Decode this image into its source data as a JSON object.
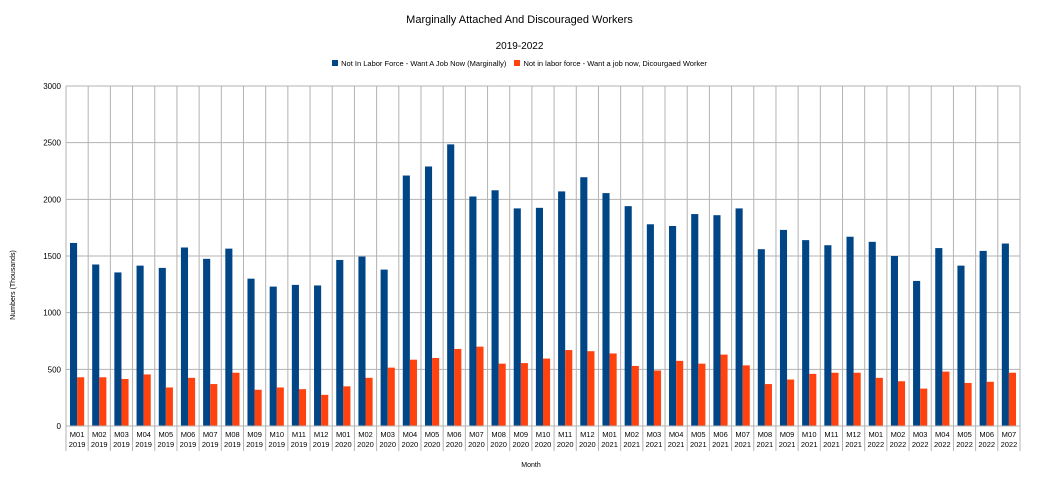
{
  "chart_data": {
    "type": "bar",
    "title": "Marginally Attached And Discouraged Workers",
    "subtitle": "2019-2022",
    "xlabel": "Month",
    "ylabel": "Numbers (Thousands)",
    "ylim": [
      0,
      3000
    ],
    "yticks": [
      0,
      500,
      1000,
      1500,
      2000,
      2500,
      3000
    ],
    "grid": true,
    "legend_position": "top",
    "categories": [
      [
        "M01",
        "2019"
      ],
      [
        "M02",
        "2019"
      ],
      [
        "M03",
        "2019"
      ],
      [
        "M04",
        "2019"
      ],
      [
        "M05",
        "2019"
      ],
      [
        "M06",
        "2019"
      ],
      [
        "M07",
        "2019"
      ],
      [
        "M08",
        "2019"
      ],
      [
        "M09",
        "2019"
      ],
      [
        "M10",
        "2019"
      ],
      [
        "M11",
        "2019"
      ],
      [
        "M12",
        "2019"
      ],
      [
        "M01",
        "2020"
      ],
      [
        "M02",
        "2020"
      ],
      [
        "M03",
        "2020"
      ],
      [
        "M04",
        "2020"
      ],
      [
        "M05",
        "2020"
      ],
      [
        "M06",
        "2020"
      ],
      [
        "M07",
        "2020"
      ],
      [
        "M08",
        "2020"
      ],
      [
        "M09",
        "2020"
      ],
      [
        "M10",
        "2020"
      ],
      [
        "M11",
        "2020"
      ],
      [
        "M12",
        "2020"
      ],
      [
        "M01",
        "2021"
      ],
      [
        "M02",
        "2021"
      ],
      [
        "M03",
        "2021"
      ],
      [
        "M04",
        "2021"
      ],
      [
        "M05",
        "2021"
      ],
      [
        "M06",
        "2021"
      ],
      [
        "M07",
        "2021"
      ],
      [
        "M08",
        "2021"
      ],
      [
        "M09",
        "2021"
      ],
      [
        "M10",
        "2021"
      ],
      [
        "M11",
        "2021"
      ],
      [
        "M12",
        "2021"
      ],
      [
        "M01",
        "2022"
      ],
      [
        "M02",
        "2022"
      ],
      [
        "M03",
        "2022"
      ],
      [
        "M04",
        "2022"
      ],
      [
        "M05",
        "2022"
      ],
      [
        "M06",
        "2022"
      ],
      [
        "M07",
        "2022"
      ]
    ],
    "series": [
      {
        "name": "Not In Labor Force - Want A Job Now (Marginally)",
        "color": "#004586",
        "values": [
          1615,
          1425,
          1355,
          1415,
          1395,
          1575,
          1475,
          1565,
          1300,
          1230,
          1245,
          1240,
          1465,
          1495,
          1380,
          2210,
          2290,
          2485,
          2025,
          2080,
          1920,
          1925,
          2070,
          2195,
          2055,
          1940,
          1780,
          1765,
          1870,
          1860,
          1920,
          1560,
          1730,
          1640,
          1595,
          1670,
          1625,
          1500,
          1280,
          1570,
          1415,
          1545,
          1610
        ]
      },
      {
        "name": "Not in labor force - Want a job now, Dicourgaed Worker",
        "color": "#ff420e",
        "values": [
          430,
          430,
          415,
          455,
          340,
          425,
          370,
          470,
          320,
          340,
          325,
          275,
          350,
          425,
          515,
          585,
          600,
          680,
          700,
          550,
          555,
          595,
          670,
          660,
          640,
          530,
          490,
          575,
          550,
          630,
          535,
          370,
          410,
          460,
          470,
          470,
          425,
          395,
          330,
          480,
          380,
          390,
          470
        ]
      }
    ]
  }
}
